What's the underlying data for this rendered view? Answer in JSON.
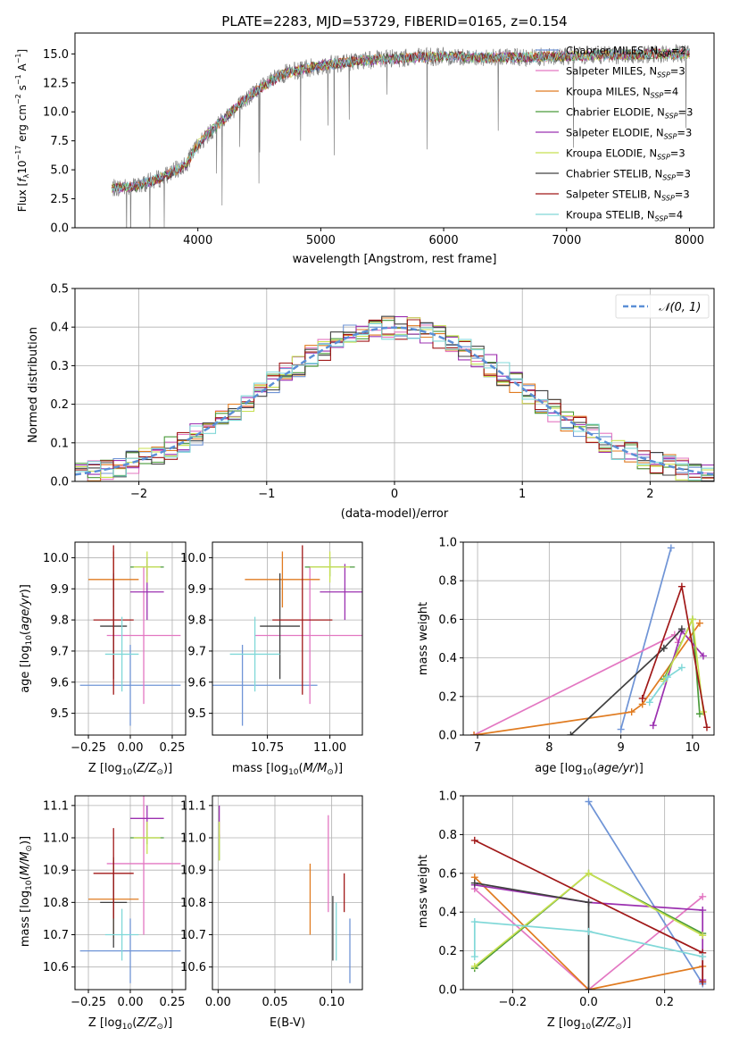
{
  "chart_data": [
    {
      "id": "spectrum",
      "type": "line",
      "title": "PLATE=2283, MJD=53729, FIBERID=0165, z=0.154",
      "xlabel": "wavelength [Angstrom, rest frame]",
      "ylabel": "Flux [f_λ 10^-17 erg cm^-2 s^-1 A^-1]",
      "xlim": [
        3000,
        8200
      ],
      "ylim": [
        0,
        16.8
      ],
      "xticks": [
        4000,
        5000,
        6000,
        7000,
        8000
      ],
      "yticks": [
        0.0,
        2.5,
        5.0,
        7.5,
        10.0,
        12.5,
        15.0
      ],
      "legend_position": "right",
      "data_curve_color": "#808080",
      "continuum_x": [
        3300,
        3500,
        3700,
        3900,
        4000,
        4200,
        4300,
        4500,
        4700,
        5000,
        5300,
        5600,
        6000,
        6300,
        6600,
        7000,
        7400,
        7700,
        8000
      ],
      "continuum_y": [
        3.4,
        3.6,
        4.3,
        5.4,
        7.2,
        9.3,
        10.3,
        12.0,
        13.3,
        14.0,
        14.4,
        14.6,
        14.8,
        14.7,
        14.7,
        14.8,
        14.9,
        15.0,
        15.0
      ],
      "series": [
        {
          "name": "Chabrier MILES, N_SSP=2",
          "color": "#6f94d6"
        },
        {
          "name": "Salpeter MILES, N_SSP=3",
          "color": "#e377c2"
        },
        {
          "name": "Kroupa MILES, N_SSP=4",
          "color": "#e07b20"
        },
        {
          "name": "Chabrier ELODIE, N_SSP=3",
          "color": "#4a9a3a"
        },
        {
          "name": "Salpeter ELODIE, N_SSP=3",
          "color": "#9b30b0"
        },
        {
          "name": "Kroupa ELODIE, N_SSP=3",
          "color": "#c8e050"
        },
        {
          "name": "Chabrier STELIB, N_SSP=3",
          "color": "#404040"
        },
        {
          "name": "Salpeter STELIB, N_SSP=3",
          "color": "#a01818"
        },
        {
          "name": "Kroupa STELIB, N_SSP=4",
          "color": "#80d8d8"
        }
      ]
    },
    {
      "id": "residuals",
      "type": "line",
      "xlabel": "(data-model)/error",
      "ylabel": "Normed distribution",
      "xlim": [
        -2.5,
        2.5
      ],
      "ylim": [
        0,
        0.5
      ],
      "xticks": [
        -2,
        -1,
        0,
        1,
        2
      ],
      "yticks": [
        0.0,
        0.1,
        0.2,
        0.3,
        0.4,
        0.5
      ],
      "grid": true,
      "bin_width": 0.1,
      "legend_position": "top-right",
      "legend_label": "𝒩(0, 1)",
      "gauss_color": "#5b8fd6"
    },
    {
      "id": "age-vs-Z",
      "type": "scatter",
      "xlabel": "Z [log10(Z/Z⊙)]",
      "ylabel": "age  [log10(age/yr)]",
      "xlim": [
        -0.33,
        0.33
      ],
      "ylim": [
        9.43,
        10.05
      ],
      "xticks": [
        -0.25,
        0.0,
        0.25
      ],
      "yticks": [
        9.5,
        9.6,
        9.7,
        9.8,
        9.9,
        10.0
      ],
      "grid": true,
      "points": [
        {
          "x": 0.0,
          "xerr": 0.3,
          "y": 9.59,
          "yerr": 0.13,
          "color": "#6f94d6"
        },
        {
          "x": 0.08,
          "xerr": 0.22,
          "y": 9.75,
          "yerr": 0.22,
          "color": "#e377c2"
        },
        {
          "x": -0.1,
          "xerr": 0.15,
          "y": 9.93,
          "yerr": 0.09,
          "color": "#e07b20"
        },
        {
          "x": 0.1,
          "xerr": 0.1,
          "y": 9.97,
          "yerr": 0.03,
          "color": "#4a9a3a"
        },
        {
          "x": 0.1,
          "xerr": 0.1,
          "y": 9.89,
          "yerr": 0.09,
          "color": "#9b30b0"
        },
        {
          "x": 0.1,
          "xerr": 0.08,
          "y": 9.97,
          "yerr": 0.05,
          "color": "#c8e050"
        },
        {
          "x": -0.1,
          "xerr": 0.08,
          "y": 9.78,
          "yerr": 0.17,
          "color": "#404040"
        },
        {
          "x": -0.1,
          "xerr": 0.12,
          "y": 9.8,
          "yerr": 0.24,
          "color": "#a01818"
        },
        {
          "x": -0.05,
          "xerr": 0.1,
          "y": 9.69,
          "yerr": 0.12,
          "color": "#80d8d8"
        }
      ]
    },
    {
      "id": "age-vs-mass",
      "type": "scatter",
      "xlabel": "mass [log10(M/M⊙)]",
      "yticks": [
        9.5,
        9.6,
        9.7,
        9.8,
        9.9,
        10.0
      ],
      "xlim": [
        10.53,
        11.13
      ],
      "ylim": [
        9.43,
        10.05
      ],
      "xticks": [
        10.75,
        11.0
      ],
      "xtick_labels": [
        "10.75",
        "11.00"
      ],
      "grid": true,
      "points": [
        {
          "x": 10.65,
          "xerr": 0.3,
          "y": 9.59,
          "yerr": 0.13,
          "color": "#6f94d6"
        },
        {
          "x": 10.92,
          "xerr": 0.22,
          "y": 9.75,
          "yerr": 0.22,
          "color": "#e377c2"
        },
        {
          "x": 10.81,
          "xerr": 0.15,
          "y": 9.93,
          "yerr": 0.09,
          "color": "#e07b20"
        },
        {
          "x": 11.0,
          "xerr": 0.1,
          "y": 9.97,
          "yerr": 0.03,
          "color": "#4a9a3a"
        },
        {
          "x": 11.06,
          "xerr": 0.1,
          "y": 9.89,
          "yerr": 0.09,
          "color": "#9b30b0"
        },
        {
          "x": 11.0,
          "xerr": 0.08,
          "y": 9.97,
          "yerr": 0.05,
          "color": "#c8e050"
        },
        {
          "x": 10.8,
          "xerr": 0.08,
          "y": 9.78,
          "yerr": 0.17,
          "color": "#404040"
        },
        {
          "x": 10.89,
          "xerr": 0.12,
          "y": 9.8,
          "yerr": 0.24,
          "color": "#a01818"
        },
        {
          "x": 10.7,
          "xerr": 0.1,
          "y": 9.69,
          "yerr": 0.12,
          "color": "#80d8d8"
        }
      ]
    },
    {
      "id": "weight-vs-age",
      "type": "line",
      "xlabel": "age  [log10(age/yr)]",
      "ylabel": "mass weight",
      "xlim": [
        6.8,
        10.3
      ],
      "ylim": [
        0,
        1.0
      ],
      "xticks": [
        7,
        8,
        9,
        10
      ],
      "yticks": [
        0.0,
        0.2,
        0.4,
        0.6,
        0.8,
        1.0
      ],
      "grid": true,
      "series": [
        {
          "name": "Chabrier MILES",
          "color": "#6f94d6",
          "x": [
            9.0,
            9.7
          ],
          "y": [
            0.03,
            0.97
          ]
        },
        {
          "name": "Salpeter MILES",
          "color": "#e377c2",
          "x": [
            6.95,
            9.75,
            9.8
          ],
          "y": [
            0.0,
            0.52,
            0.48
          ]
        },
        {
          "name": "Kroupa MILES",
          "color": "#e07b20",
          "x": [
            6.95,
            9.15,
            9.3,
            10.1
          ],
          "y": [
            0.0,
            0.12,
            0.16,
            0.58
          ]
        },
        {
          "name": "Chabrier ELODIE",
          "color": "#4a9a3a",
          "x": [
            9.6,
            10.0,
            10.1
          ],
          "y": [
            0.29,
            0.6,
            0.11
          ]
        },
        {
          "name": "Salpeter ELODIE",
          "color": "#9b30b0",
          "x": [
            9.45,
            9.85,
            10.15
          ],
          "y": [
            0.05,
            0.54,
            0.41
          ]
        },
        {
          "name": "Kroupa ELODIE",
          "color": "#c8e050",
          "x": [
            9.6,
            10.0,
            10.15
          ],
          "y": [
            0.28,
            0.6,
            0.12
          ]
        },
        {
          "name": "Chabrier STELIB",
          "color": "#404040",
          "x": [
            8.3,
            9.6,
            9.85
          ],
          "y": [
            0.0,
            0.45,
            0.55
          ]
        },
        {
          "name": "Salpeter STELIB",
          "color": "#a01818",
          "x": [
            9.3,
            9.85,
            10.2
          ],
          "y": [
            0.19,
            0.77,
            0.04
          ]
        },
        {
          "name": "Kroupa STELIB",
          "color": "#80d8d8",
          "x": [
            9.4,
            9.65,
            9.85
          ],
          "y": [
            0.17,
            0.3,
            0.35
          ]
        }
      ]
    },
    {
      "id": "mass-vs-Z",
      "type": "scatter",
      "xlabel": "Z [log10(Z/Z⊙)]",
      "ylabel": "mass [log10(M/M⊙)]",
      "xlim": [
        -0.33,
        0.33
      ],
      "ylim": [
        10.53,
        11.13
      ],
      "xticks": [
        -0.25,
        0.0,
        0.25
      ],
      "yticks": [
        10.6,
        10.7,
        10.8,
        10.9,
        11.0,
        11.1
      ],
      "grid": true,
      "points": [
        {
          "x": 0.0,
          "xerr": 0.3,
          "y": 10.65,
          "yerr": 0.1,
          "color": "#6f94d6"
        },
        {
          "x": 0.08,
          "xerr": 0.22,
          "y": 10.92,
          "yerr": 0.22,
          "color": "#e377c2"
        },
        {
          "x": -0.1,
          "xerr": 0.15,
          "y": 10.81,
          "yerr": 0.12,
          "color": "#e07b20"
        },
        {
          "x": 0.1,
          "xerr": 0.1,
          "y": 11.0,
          "yerr": 0.02,
          "color": "#4a9a3a"
        },
        {
          "x": 0.1,
          "xerr": 0.1,
          "y": 11.06,
          "yerr": 0.04,
          "color": "#9b30b0"
        },
        {
          "x": 0.1,
          "xerr": 0.08,
          "y": 11.0,
          "yerr": 0.05,
          "color": "#c8e050"
        },
        {
          "x": -0.1,
          "xerr": 0.08,
          "y": 10.8,
          "yerr": 0.14,
          "color": "#404040"
        },
        {
          "x": -0.1,
          "xerr": 0.12,
          "y": 10.89,
          "yerr": 0.14,
          "color": "#a01818"
        },
        {
          "x": -0.05,
          "xerr": 0.1,
          "y": 10.7,
          "yerr": 0.08,
          "color": "#80d8d8"
        }
      ]
    },
    {
      "id": "mass-vs-EBV",
      "type": "scatter",
      "xlabel": "E(B-V)",
      "xlim": [
        -0.005,
        0.127
      ],
      "ylim": [
        10.53,
        11.13
      ],
      "xticks": [
        0.0,
        0.05,
        0.1
      ],
      "xtick_labels": [
        "0.00",
        "0.05",
        "0.10"
      ],
      "yticks": [
        10.6,
        10.7,
        10.8,
        10.9,
        11.0,
        11.1
      ],
      "grid": true,
      "points": [
        {
          "x": 0.116,
          "y": 10.65,
          "yerr": 0.1,
          "color": "#6f94d6"
        },
        {
          "x": 0.097,
          "y": 10.92,
          "yerr": 0.15,
          "color": "#e377c2"
        },
        {
          "x": 0.081,
          "y": 10.81,
          "yerr": 0.11,
          "color": "#e07b20"
        },
        {
          "x": 0.001,
          "y": 10.97,
          "yerr": 0.04,
          "color": "#4a9a3a"
        },
        {
          "x": 0.001,
          "y": 11.05,
          "yerr": 0.05,
          "color": "#9b30b0"
        },
        {
          "x": 0.001,
          "y": 10.99,
          "yerr": 0.06,
          "color": "#c8e050"
        },
        {
          "x": 0.101,
          "y": 10.72,
          "yerr": 0.1,
          "color": "#404040"
        },
        {
          "x": 0.111,
          "y": 10.83,
          "yerr": 0.06,
          "color": "#a01818"
        },
        {
          "x": 0.104,
          "y": 10.71,
          "yerr": 0.09,
          "color": "#80d8d8"
        }
      ]
    },
    {
      "id": "weight-vs-Z",
      "type": "line",
      "xlabel": "Z [log10(Z/Z⊙)]",
      "ylabel": "mass weight",
      "xlim": [
        -0.33,
        0.33
      ],
      "ylim": [
        0,
        1.0
      ],
      "xticks": [
        -0.2,
        0.0,
        0.2
      ],
      "yticks": [
        0.0,
        0.2,
        0.4,
        0.6,
        0.8,
        1.0
      ],
      "grid": true,
      "series": [
        {
          "name": "Chabrier MILES",
          "color": "#6f94d6",
          "x": [
            0.0,
            0.3
          ],
          "y": [
            0.97,
            0.03
          ]
        },
        {
          "name": "Salpeter MILES",
          "color": "#e377c2",
          "x": [
            -0.3,
            0.0,
            0.3
          ],
          "y": [
            0.52,
            0.0,
            0.48
          ]
        },
        {
          "name": "Kroupa MILES",
          "color": "#e07b20",
          "x": [
            -0.3,
            0.0,
            0.3
          ],
          "y": [
            0.58,
            0.0,
            0.12
          ]
        },
        {
          "name": "Chabrier ELODIE",
          "color": "#4a9a3a",
          "x": [
            -0.3,
            0.0,
            0.3
          ],
          "y": [
            0.11,
            0.6,
            0.29
          ]
        },
        {
          "name": "Salpeter ELODIE",
          "color": "#9b30b0",
          "x": [
            -0.3,
            0.0,
            0.3,
            0.3
          ],
          "y": [
            0.54,
            0.45,
            0.41,
            0.05
          ]
        },
        {
          "name": "Kroupa ELODIE",
          "color": "#c8e050",
          "x": [
            -0.3,
            0.0,
            0.3
          ],
          "y": [
            0.12,
            0.6,
            0.28
          ]
        },
        {
          "name": "Chabrier STELIB",
          "color": "#404040",
          "x": [
            -0.3,
            0.0,
            0.0
          ],
          "y": [
            0.55,
            0.45,
            0.0
          ]
        },
        {
          "name": "Salpeter STELIB",
          "color": "#a01818",
          "x": [
            -0.3,
            0.3,
            0.3
          ],
          "y": [
            0.77,
            0.19,
            0.04
          ]
        },
        {
          "name": "Kroupa STELIB",
          "color": "#80d8d8",
          "x": [
            -0.3,
            -0.3,
            0.0,
            0.3
          ],
          "y": [
            0.17,
            0.35,
            0.3,
            0.17
          ]
        }
      ]
    }
  ]
}
